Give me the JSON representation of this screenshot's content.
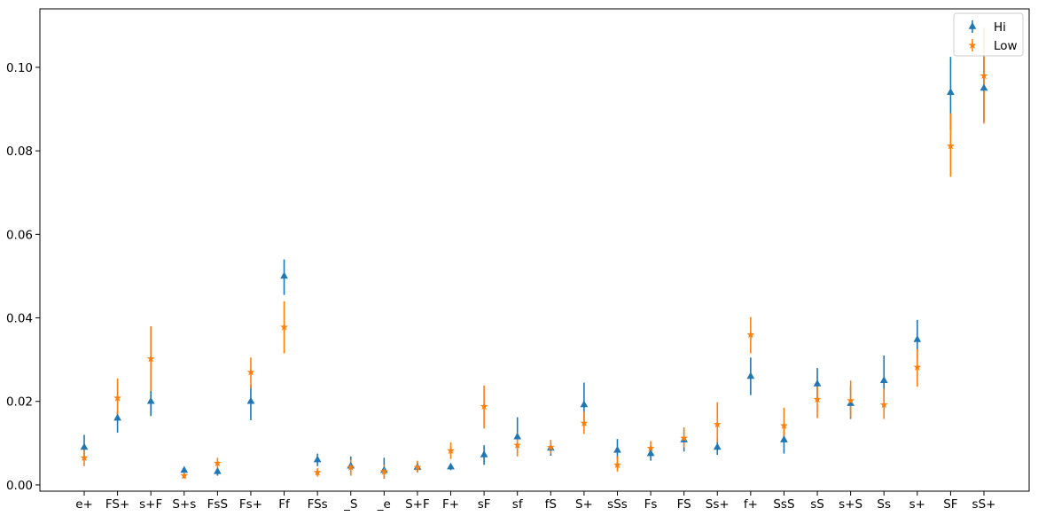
{
  "chart_data": {
    "type": "scatter",
    "title": "",
    "xlabel": "",
    "ylabel": "",
    "categories": [
      "e+",
      "FS+",
      "s+F",
      "S+s",
      "FsS",
      "Fs+",
      "Ff",
      "FSs",
      "_S",
      "_e",
      "S+F",
      "F+",
      "sF",
      "sf",
      "fS",
      "S+",
      "sSs",
      "Fs",
      "FS",
      "Ss+",
      "f+",
      "SsS",
      "sS",
      "s+S",
      "Ss",
      "s+",
      "SF",
      "sS+"
    ],
    "ylim": [
      -0.0015,
      0.114
    ],
    "yticks": [
      0.0,
      0.02,
      0.04,
      0.06,
      0.08,
      0.1
    ],
    "ytick_labels": [
      "0.00",
      "0.02",
      "0.04",
      "0.06",
      "0.08",
      "0.10"
    ],
    "grid": false,
    "legend_position": "top-right",
    "series": [
      {
        "name": "Hi",
        "color": "#1f77b4",
        "marker": "triangle",
        "values": [
          0.009,
          0.016,
          0.02,
          0.0035,
          0.0032,
          0.02,
          0.05,
          0.006,
          0.0045,
          0.0035,
          0.0042,
          0.0043,
          0.0072,
          0.0115,
          0.0088,
          0.0192,
          0.0083,
          0.0075,
          0.0108,
          0.009,
          0.026,
          0.0108,
          0.0242,
          0.0195,
          0.025,
          0.0348,
          0.094,
          0.095
        ],
        "err_low": [
          0.007,
          0.0125,
          0.0165,
          0.0025,
          0.0022,
          0.0155,
          0.0455,
          0.0045,
          0.0025,
          0.0015,
          0.003,
          0.0035,
          0.0048,
          0.007,
          0.007,
          0.0145,
          0.006,
          0.0058,
          0.008,
          0.0072,
          0.0215,
          0.0075,
          0.02,
          0.0158,
          0.02,
          0.03,
          0.085,
          0.087
        ],
        "err_high": [
          0.012,
          0.0175,
          0.0225,
          0.004,
          0.004,
          0.024,
          0.054,
          0.0075,
          0.0068,
          0.0065,
          0.0052,
          0.005,
          0.0095,
          0.0162,
          0.0105,
          0.0245,
          0.011,
          0.009,
          0.0135,
          0.011,
          0.0305,
          0.0145,
          0.028,
          0.0235,
          0.031,
          0.0395,
          0.1025,
          0.103
        ]
      },
      {
        "name": "Low",
        "color": "#ff7f0e",
        "marker": "star",
        "values": [
          0.0065,
          0.0208,
          0.0302,
          0.0022,
          0.0052,
          0.027,
          0.0378,
          0.003,
          0.0042,
          0.0032,
          0.0042,
          0.0082,
          0.0188,
          0.0095,
          0.009,
          0.0148,
          0.0048,
          0.0088,
          0.0112,
          0.0145,
          0.036,
          0.0142,
          0.0205,
          0.0202,
          0.0192,
          0.0282,
          0.0812,
          0.098
        ],
        "err_low": [
          0.0045,
          0.016,
          0.0225,
          0.0015,
          0.004,
          0.0232,
          0.0315,
          0.002,
          0.0022,
          0.0015,
          0.003,
          0.0062,
          0.0135,
          0.0068,
          0.0075,
          0.0122,
          0.0032,
          0.007,
          0.009,
          0.0102,
          0.0315,
          0.0108,
          0.016,
          0.016,
          0.0158,
          0.0235,
          0.0738,
          0.0865
        ],
        "err_high": [
          0.0085,
          0.0255,
          0.038,
          0.003,
          0.0065,
          0.0305,
          0.044,
          0.004,
          0.006,
          0.0048,
          0.0058,
          0.0102,
          0.0238,
          0.0125,
          0.0108,
          0.0175,
          0.0068,
          0.0105,
          0.0138,
          0.0198,
          0.0402,
          0.0185,
          0.0245,
          0.025,
          0.023,
          0.0325,
          0.089,
          0.1095
        ]
      }
    ]
  }
}
